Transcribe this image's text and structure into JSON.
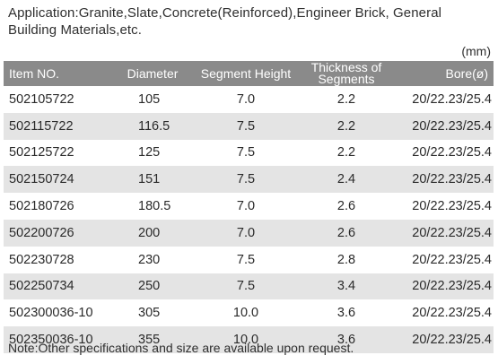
{
  "application_text": "Application:Granite,Slate,Concrete(Reinforced),Engineer Brick, General Building Materials,etc.",
  "unit": "(mm)",
  "table": {
    "headers": {
      "item": "Item NO.",
      "diameter": "Diameter",
      "segment_height": "Segment Height",
      "thickness_line1": "Thickness of",
      "thickness_line2": "Segments",
      "bore": "Bore(ø)"
    },
    "rows": [
      {
        "item": "502105722",
        "diameter": "105",
        "segment_height": "7.0",
        "thickness": "2.2",
        "bore": "20/22.23/25.4"
      },
      {
        "item": "502115722",
        "diameter": "116.5",
        "segment_height": "7.5",
        "thickness": "2.2",
        "bore": "20/22.23/25.4"
      },
      {
        "item": "502125722",
        "diameter": "125",
        "segment_height": "7.5",
        "thickness": "2.2",
        "bore": "20/22.23/25.4"
      },
      {
        "item": "502150724",
        "diameter": "151",
        "segment_height": "7.5",
        "thickness": "2.4",
        "bore": "20/22.23/25.4"
      },
      {
        "item": "502180726",
        "diameter": "180.5",
        "segment_height": "7.0",
        "thickness": "2.6",
        "bore": "20/22.23/25.4"
      },
      {
        "item": "502200726",
        "diameter": "200",
        "segment_height": "7.0",
        "thickness": "2.6",
        "bore": "20/22.23/25.4"
      },
      {
        "item": "502230728",
        "diameter": "230",
        "segment_height": "7.5",
        "thickness": "2.8",
        "bore": "20/22.23/25.4"
      },
      {
        "item": "502250734",
        "diameter": "250",
        "segment_height": "7.5",
        "thickness": "3.4",
        "bore": "20/22.23/25.4"
      },
      {
        "item": "502300036-10",
        "diameter": "305",
        "segment_height": "10.0",
        "thickness": "3.6",
        "bore": "20/22.23/25.4"
      },
      {
        "item": "502350036-10",
        "diameter": "355",
        "segment_height": "10.0",
        "thickness": "3.6",
        "bore": "20/22.23/25.4"
      }
    ]
  },
  "note": "Note:Other specifications and size are available upon request.",
  "colors": {
    "header_bg": "#8a8a8a",
    "shaded_row_bg": "#e4e4e4",
    "text": "#2a2a2a"
  }
}
